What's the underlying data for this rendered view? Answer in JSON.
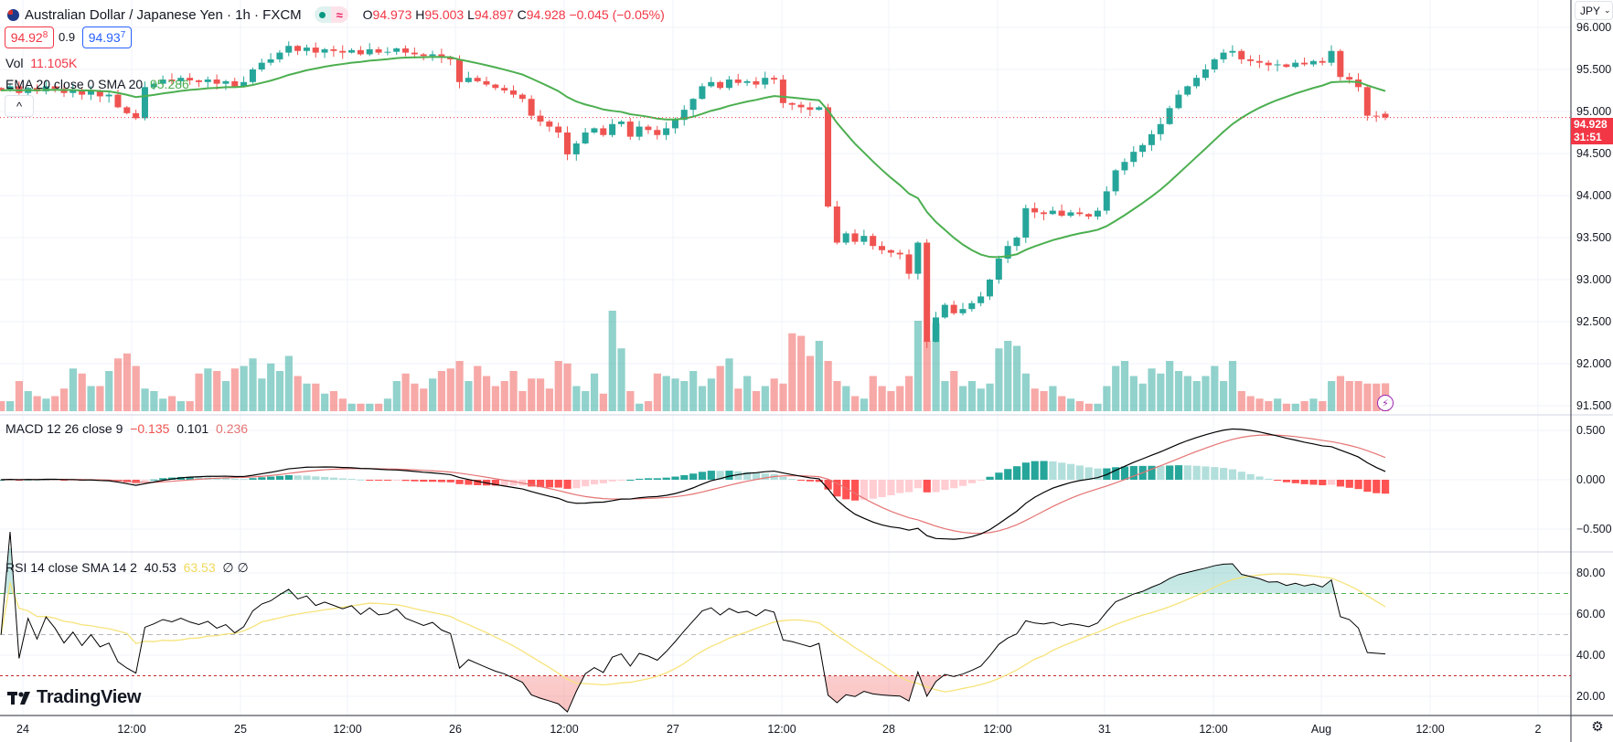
{
  "header": {
    "title": "Australian Dollar / Japanese Yen · 1h · FXCM",
    "o_label": "O",
    "o": "94.973",
    "h_label": "H",
    "h": "95.003",
    "l_label": "L",
    "l": "94.897",
    "c_label": "C",
    "c": "94.928",
    "change": "−0.045 (−0.05%)",
    "market_status_icon": "green-dot-icon",
    "delay_icon": "≈"
  },
  "trade": {
    "sell_main": "94.92",
    "sell_sup": "8",
    "spread": "0.9",
    "buy_main": "94.93",
    "buy_sup": "7"
  },
  "legend": {
    "vol_label": "Vol",
    "vol_value": "11.105K",
    "ema_label": "EMA 20 close 0 SMA 20",
    "ema_value": "95.286",
    "macd_label": "MACD 12 26 close 9",
    "macd_hist": "−0.135",
    "macd_macd": "0.101",
    "macd_signal": "0.236",
    "rsi_label": "RSI 14 close SMA 14 2",
    "rsi_value": "40.53",
    "rsi_sma": "63.53",
    "rsi_extra1": "∅",
    "rsi_extra2": "∅",
    "collapse_icon": "^"
  },
  "axis": {
    "currency": "JPY",
    "price_ticks": [
      "96.000",
      "95.500",
      "95.000",
      "94.500",
      "94.000",
      "93.500",
      "93.000",
      "92.500",
      "92.000",
      "91.500"
    ],
    "macd_ticks": [
      "0.500",
      "0.000",
      "−0.500"
    ],
    "rsi_ticks": [
      "80.00",
      "60.00",
      "40.00",
      "20.00"
    ],
    "time_ticks": [
      "24",
      "12:00",
      "25",
      "12:00",
      "26",
      "12:00",
      "27",
      "12:00",
      "28",
      "12:00",
      "31",
      "12:00",
      "Aug",
      "12:00",
      "2"
    ],
    "last_price": "94.928",
    "countdown": "31:51"
  },
  "branding": {
    "logo_text": "TradingView"
  },
  "colors": {
    "up": "#26a69a",
    "down": "#ef5350",
    "ema": "#4caf50",
    "macd": "#000000",
    "signal": "#e57373",
    "rsi": "#000000",
    "rsi_sma": "#f7e37a",
    "price_line": "#f23645"
  },
  "chart_data": {
    "type": "candlestick",
    "timeframe": "1h",
    "price_range": [
      91.5,
      96.0
    ],
    "closes": [
      95.25,
      95.3,
      95.22,
      95.28,
      95.24,
      95.3,
      95.27,
      95.22,
      95.26,
      95.2,
      95.25,
      95.18,
      95.2,
      95.05,
      94.98,
      94.92,
      95.29,
      95.33,
      95.38,
      95.36,
      95.4,
      95.37,
      95.35,
      95.38,
      95.33,
      95.36,
      95.3,
      95.35,
      95.5,
      95.58,
      95.62,
      95.7,
      95.78,
      95.72,
      95.76,
      95.7,
      95.74,
      95.72,
      95.7,
      95.73,
      95.68,
      95.74,
      95.7,
      95.71,
      95.75,
      95.7,
      95.68,
      95.66,
      95.68,
      95.64,
      95.62,
      95.35,
      95.4,
      95.36,
      95.32,
      95.28,
      95.25,
      95.2,
      95.15,
      94.95,
      94.88,
      94.82,
      94.75,
      94.49,
      94.62,
      94.75,
      94.8,
      94.72,
      94.85,
      94.88,
      94.7,
      94.82,
      94.78,
      94.72,
      94.8,
      94.9,
      95.02,
      95.15,
      95.3,
      95.35,
      95.28,
      95.38,
      95.34,
      95.36,
      95.32,
      95.4,
      95.38,
      95.1,
      95.08,
      95.05,
      95.02,
      95.05,
      93.87,
      93.44,
      93.55,
      93.45,
      93.52,
      93.4,
      93.35,
      93.32,
      93.3,
      93.07,
      93.44,
      92.26,
      92.55,
      92.7,
      92.6,
      92.65,
      92.72,
      92.8,
      93.0,
      93.25,
      93.4,
      93.5,
      93.85,
      93.8,
      93.78,
      93.82,
      93.76,
      93.8,
      93.78,
      93.75,
      93.82,
      94.05,
      94.3,
      94.4,
      94.52,
      94.6,
      94.73,
      94.85,
      95.04,
      95.2,
      95.3,
      95.4,
      95.5,
      95.62,
      95.7,
      95.72,
      95.62,
      95.6,
      95.58,
      95.55,
      95.56,
      95.53,
      95.58,
      95.56,
      95.6,
      95.58,
      95.72,
      95.41,
      95.38,
      95.29,
      94.95,
      94.94,
      94.928
    ],
    "volumes_k": [
      4,
      4,
      12,
      8,
      6,
      5,
      6,
      9,
      17,
      15,
      10,
      10,
      16,
      21,
      23,
      18,
      9,
      8,
      5,
      6,
      4,
      4,
      15,
      17,
      16,
      12,
      17,
      18,
      21,
      13,
      19,
      16,
      22,
      14,
      11,
      11,
      7,
      8,
      5,
      3,
      3,
      3,
      3,
      5,
      12,
      15,
      11,
      9,
      13,
      16,
      17,
      20,
      12,
      18,
      14,
      10,
      12,
      16,
      8,
      13,
      13,
      9,
      20,
      19,
      10,
      8,
      15,
      7,
      40,
      25,
      8,
      3,
      4,
      15,
      14,
      13,
      12,
      16,
      10,
      13,
      18,
      21,
      9,
      14,
      8,
      10,
      13,
      11,
      31,
      30,
      22,
      28,
      20,
      12,
      10,
      6,
      5,
      14,
      10,
      8,
      10,
      14,
      36,
      28,
      35,
      12,
      16,
      10,
      12,
      9,
      11,
      25,
      28,
      26,
      15,
      9,
      8,
      10,
      6,
      5,
      4,
      3,
      3,
      10,
      18,
      20,
      14,
      11,
      17,
      15,
      20,
      16,
      14,
      12,
      14,
      18,
      12,
      20,
      8,
      6,
      5,
      4,
      5,
      3,
      3,
      4,
      5,
      4,
      12,
      14,
      12,
      12,
      11,
      11,
      11.105
    ],
    "last_candle": {
      "open": 94.973,
      "high": 95.003,
      "low": 94.897,
      "close": 94.928
    },
    "indicators": {
      "ema_length": 20,
      "macd": [
        12,
        26,
        9
      ],
      "rsi_length": 14,
      "rsi_sma": 14,
      "rsi_bands": [
        70,
        50,
        30
      ]
    },
    "macd_range": [
      -0.7,
      0.7
    ],
    "rsi_range": [
      10,
      90
    ]
  }
}
